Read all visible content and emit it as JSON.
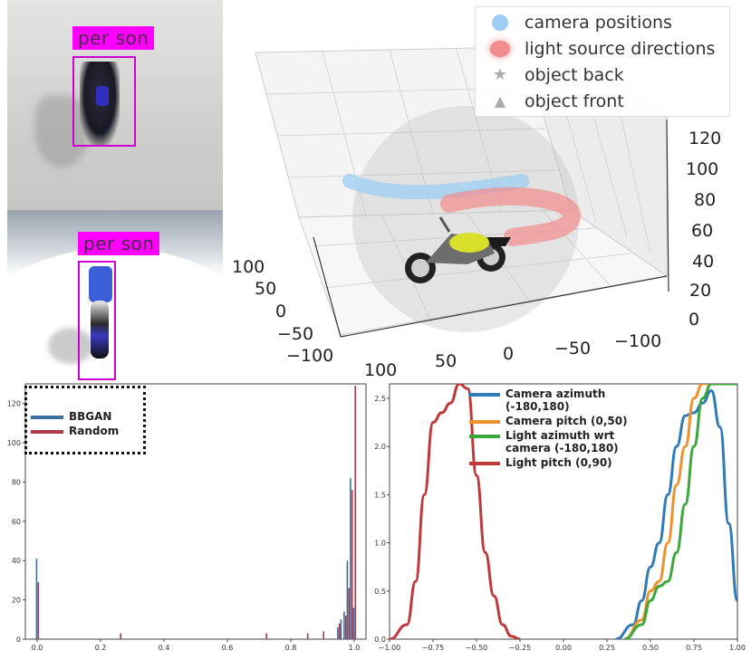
{
  "top_left": {
    "image1_label": "per son",
    "image2_label": "per son"
  },
  "plot3d": {
    "legend": [
      {
        "label": "camera positions",
        "color": "#9ccdf2"
      },
      {
        "label": "light source directions",
        "color": "#f28b8b"
      },
      {
        "label": "object back",
        "color": "#aaaaaa"
      },
      {
        "label": "object front",
        "color": "#aaaaaa"
      }
    ],
    "z_ticks": [
      "120",
      "100",
      "80",
      "60",
      "40",
      "20",
      "0"
    ],
    "y_ticks": [
      "100",
      "50",
      "0",
      "−50",
      "−100"
    ],
    "x_ticks": [
      "100",
      "50",
      "0",
      "−50",
      "−100"
    ]
  },
  "chart_data": [
    {
      "type": "bar",
      "legend": [
        "BBGAN",
        "Random"
      ],
      "colors": {
        "BBGAN": "#3b6fa0",
        "Random": "#b03a48"
      },
      "xlim": [
        0.0,
        1.0
      ],
      "ylim": [
        0,
        130
      ],
      "x_ticks": [
        "0.0",
        "0.2",
        "0.4",
        "0.6",
        "0.8",
        "1.0"
      ],
      "y_ticks": [
        "0",
        "20",
        "40",
        "60",
        "80",
        "100",
        "120"
      ],
      "series": [
        {
          "name": "BBGAN",
          "x": [
            0.0,
            0.95,
            0.96,
            0.97,
            0.98,
            0.99,
            1.0
          ],
          "values": [
            41,
            6,
            10,
            14,
            40,
            82,
            16
          ]
        },
        {
          "name": "Random",
          "x": [
            0.0,
            0.26,
            0.72,
            0.85,
            0.9,
            0.95,
            0.97,
            0.98,
            0.99,
            1.0
          ],
          "values": [
            29,
            3,
            3,
            3,
            4,
            8,
            12,
            26,
            76,
            129
          ]
        }
      ]
    },
    {
      "type": "line",
      "xlim": [
        -1.0,
        1.0
      ],
      "ylim": [
        0,
        2.65
      ],
      "x_ticks": [
        "−1.00",
        "−0.75",
        "−0.50",
        "−0.25",
        "0.00",
        "0.25",
        "0.50",
        "0.75",
        "1.00"
      ],
      "y_ticks": [
        "0.0",
        "0.5",
        "1.0",
        "1.5",
        "2.0",
        "2.5"
      ],
      "series": [
        {
          "name": "Camera azimuth (-180,180)",
          "color": "#2f7ab8",
          "x": [
            0.3,
            0.4,
            0.45,
            0.5,
            0.55,
            0.6,
            0.65,
            0.7,
            0.75,
            0.8,
            0.85,
            0.9,
            0.95,
            1.0
          ],
          "values": [
            0.0,
            0.15,
            0.4,
            0.75,
            1.0,
            1.5,
            2.0,
            2.32,
            2.35,
            2.45,
            2.58,
            2.2,
            1.2,
            0.4
          ]
        },
        {
          "name": "Camera pitch (0,50)",
          "color": "#f0922c",
          "x": [
            0.35,
            0.45,
            0.5,
            0.55,
            0.6,
            0.65,
            0.7,
            0.75,
            0.8,
            0.85
          ],
          "values": [
            0.0,
            0.2,
            0.5,
            0.6,
            1.0,
            1.6,
            2.0,
            2.5,
            2.65,
            2.65
          ]
        },
        {
          "name": "Light azimuth wrt camera (-180,180)",
          "color": "#3aa83a",
          "x": [
            0.35,
            0.45,
            0.5,
            0.55,
            0.6,
            0.65,
            0.7,
            0.75,
            0.8,
            0.85,
            0.9,
            1.0
          ],
          "values": [
            0.0,
            0.15,
            0.4,
            0.55,
            0.6,
            0.9,
            1.4,
            2.0,
            2.5,
            2.65,
            2.65,
            2.65
          ]
        },
        {
          "name": "Light pitch (0,90)",
          "color": "#c0383a",
          "x": [
            -1.0,
            -0.9,
            -0.85,
            -0.8,
            -0.75,
            -0.7,
            -0.65,
            -0.6,
            -0.55,
            -0.5,
            -0.45,
            -0.4,
            -0.35,
            -0.3,
            -0.25
          ],
          "values": [
            0.0,
            0.15,
            0.6,
            1.5,
            2.25,
            2.35,
            2.45,
            2.65,
            2.6,
            1.7,
            0.9,
            0.45,
            0.15,
            0.03,
            0.0
          ]
        }
      ]
    }
  ]
}
